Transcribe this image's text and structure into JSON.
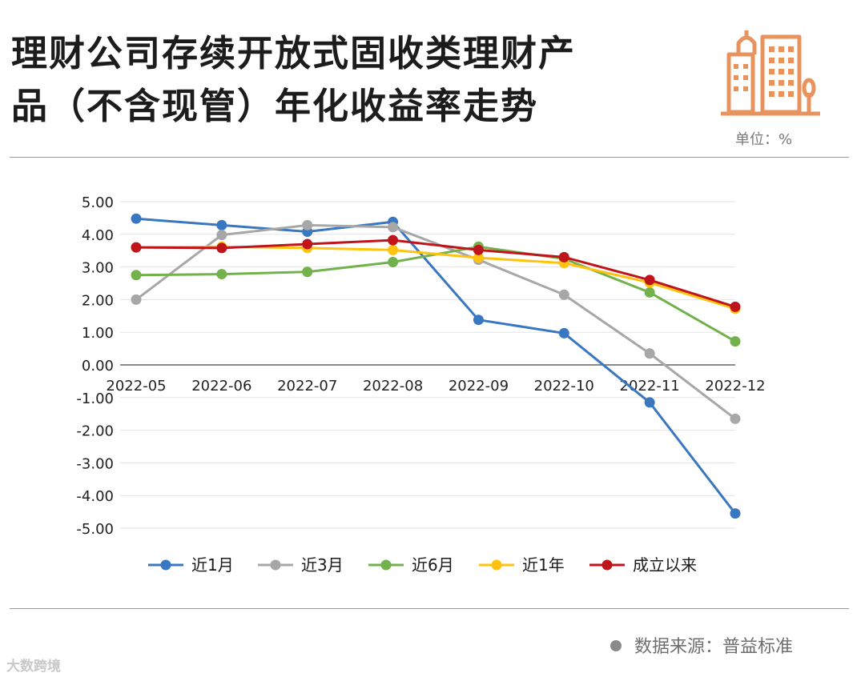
{
  "header": {
    "title_line1": "理财公司存续开放式固收类理财产",
    "title_line2": "品（不含现管）年化收益率走势",
    "unit": "单位：%",
    "icon": "city-buildings-icon"
  },
  "colors": {
    "near_1m": "#3a77c1",
    "near_3m": "#a7a7a7",
    "near_6m": "#72b14c",
    "near_1y": "#ffc20e",
    "since_inception": "#c0141c",
    "icon": "#e8935e"
  },
  "chart_data": {
    "type": "line",
    "categories": [
      "2022-05",
      "2022-06",
      "2022-07",
      "2022-08",
      "2022-09",
      "2022-10",
      "2022-11",
      "2022-12"
    ],
    "y_ticks": [
      "5.00",
      "4.00",
      "3.00",
      "2.00",
      "1.00",
      "0.00",
      "-1.00",
      "-2.00",
      "-3.00",
      "-4.00",
      "-5.00"
    ],
    "ylim": [
      -5,
      5
    ],
    "grid": true,
    "legend_position": "bottom",
    "series": [
      {
        "name": "近1月",
        "values": [
          4.48,
          4.28,
          4.08,
          4.38,
          1.38,
          0.97,
          -1.15,
          -4.55
        ]
      },
      {
        "name": "近3月",
        "values": [
          2.0,
          3.98,
          4.28,
          4.22,
          3.22,
          2.15,
          0.35,
          -1.65
        ]
      },
      {
        "name": "近6月",
        "values": [
          2.75,
          2.78,
          2.85,
          3.15,
          3.62,
          3.25,
          2.22,
          0.72
        ]
      },
      {
        "name": "近1年",
        "values": [
          3.6,
          3.62,
          3.58,
          3.52,
          3.28,
          3.12,
          2.52,
          1.72
        ]
      },
      {
        "name": "成立以来",
        "values": [
          3.6,
          3.58,
          3.7,
          3.82,
          3.52,
          3.3,
          2.6,
          1.78
        ]
      }
    ]
  },
  "footer": {
    "source": "数据来源：普益标准",
    "brand": "大数跨境"
  }
}
